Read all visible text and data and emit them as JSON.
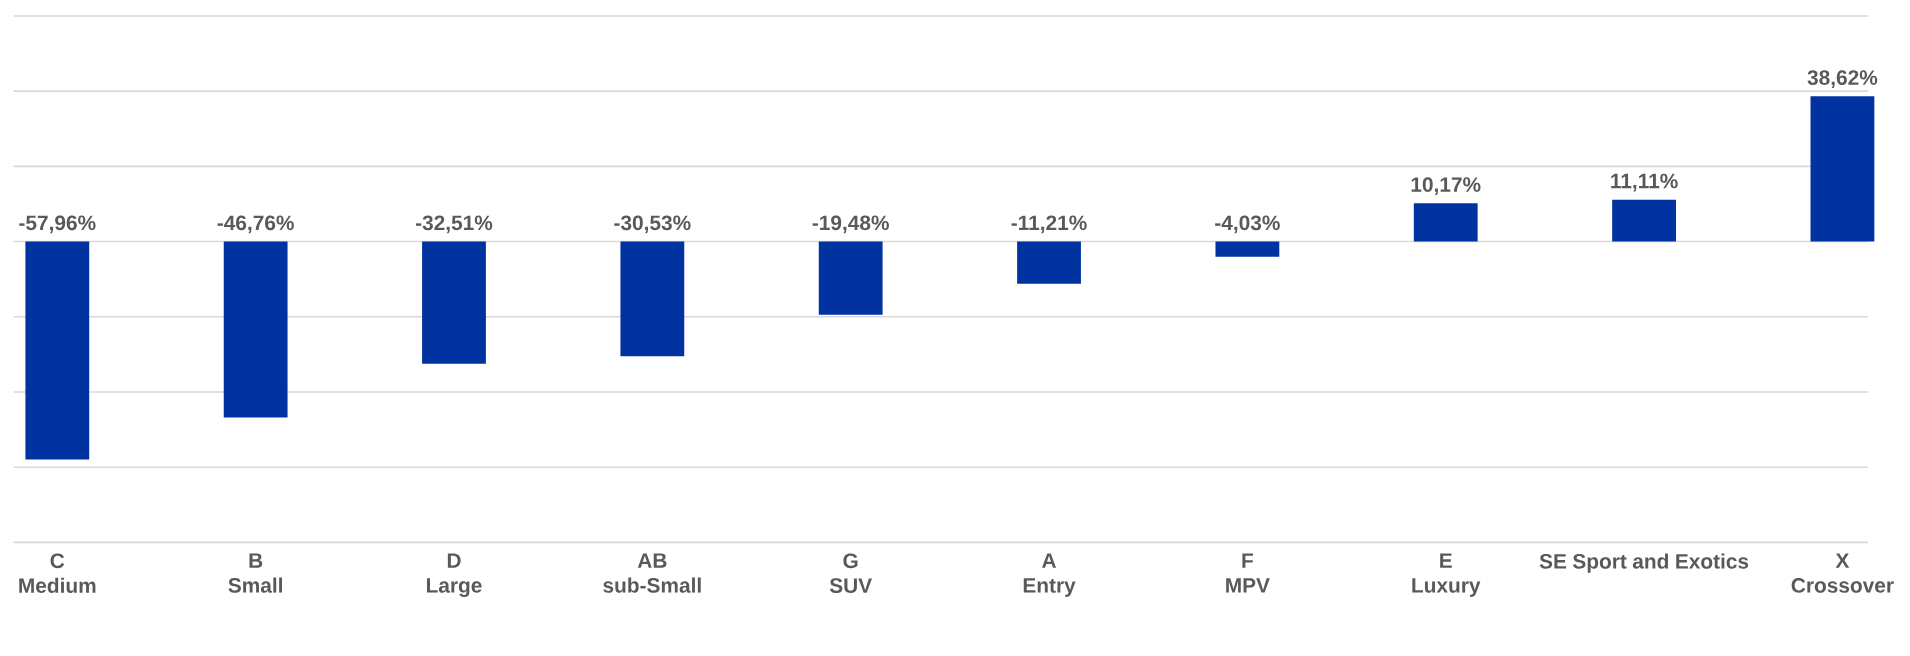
{
  "chart_data": {
    "type": "bar",
    "categories": [
      "C Medium",
      "B Small",
      "D Large",
      "AB sub-Small",
      "G SUV",
      "A Entry",
      "F MPV",
      "E Luxury",
      "SE Sport and Exotics",
      "X Crossover"
    ],
    "values": [
      -57.96,
      -46.76,
      -32.51,
      -30.53,
      -19.48,
      -11.21,
      -4.03,
      10.17,
      11.11,
      38.62
    ],
    "value_labels": [
      "-57,96%",
      "-46,76%",
      "-32,51%",
      "-30,53%",
      "-19,48%",
      "-11,21%",
      "-4,03%",
      "10,17%",
      "11,11%",
      "38,62%"
    ],
    "color": "#0033a0",
    "ylim": [
      -80,
      60
    ],
    "yticks": [
      {
        "value": -80,
        "label": null
      },
      {
        "value": -60,
        "label": null
      },
      {
        "value": -40,
        "label": null
      },
      {
        "value": -20,
        "label": null
      },
      {
        "value": 0,
        "label": null
      },
      {
        "value": 20,
        "label": null
      },
      {
        "value": 40,
        "label": null
      },
      {
        "value": 60,
        "label": null
      }
    ],
    "grid": "y",
    "tick_labels": "x"
  }
}
